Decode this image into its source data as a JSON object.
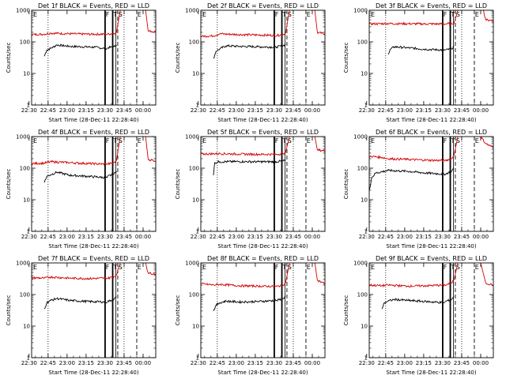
{
  "figure": {
    "start_time_label": "Start Time (28-Dec-11 22:28:40)",
    "ylabel": "Counts/sec",
    "x_tick_labels": [
      "22:30",
      "22:45",
      "23:00",
      "23:15",
      "23:30",
      "23:45",
      "00:00"
    ],
    "y_tick_labels": [
      "1",
      "10",
      "100",
      "1000"
    ],
    "flag_labels": [
      "F",
      "T",
      "S",
      "E"
    ],
    "colors": {
      "events": "#000000",
      "lld": "#d40000",
      "axes": "#000000"
    }
  },
  "chart_data": [
    {
      "type": "line",
      "title": "Det 1f BLACK = Events, RED = LLD",
      "xlabel": "Start Time (28-Dec-11 22:28:40)",
      "ylabel": "Counts/sec",
      "xlim": [
        "22:30",
        "00:08"
      ],
      "ylim": [
        1,
        1000
      ],
      "yscale": "log",
      "series": [
        {
          "name": "Events",
          "color": "#000000",
          "start": "22:40",
          "segments": [
            {
              "x": [
                "22:40",
                "22:42",
                "22:45",
                "22:50",
                "23:00",
                "23:10",
                "23:20",
                "23:30"
              ],
              "y": [
                35,
                55,
                62,
                80,
                72,
                70,
                68,
                60
              ]
            },
            {
              "x": [
                "23:30",
                "23:35",
                "23:37"
              ],
              "y": [
                65,
                70,
                80
              ]
            }
          ]
        },
        {
          "name": "LLD",
          "color": "#d40000",
          "start": "22:30",
          "segments": [
            {
              "x": [
                "22:30",
                "22:40",
                "22:45",
                "23:00",
                "23:15",
                "23:30"
              ],
              "y": [
                170,
                175,
                190,
                180,
                175,
                175
              ]
            },
            {
              "x": [
                "23:30",
                "23:35",
                "23:37",
                "23:40"
              ],
              "y": [
                175,
                185,
                200,
                1000
              ]
            },
            {
              "x": [
                "00:00",
                "00:02",
                "00:08"
              ],
              "y": [
                1000,
                220,
                210
              ]
            }
          ]
        }
      ]
    },
    {
      "type": "line",
      "title": "Det 2f BLACK = Events, RED = LLD",
      "xlabel": "Start Time (28-Dec-11 22:28:40)",
      "ylabel": "Counts/sec",
      "xlim": [
        "22:30",
        "00:08"
      ],
      "ylim": [
        1,
        1000
      ],
      "yscale": "log",
      "series": [
        {
          "name": "Events",
          "color": "#000000",
          "segments": [
            {
              "x": [
                "22:40",
                "22:42",
                "22:45",
                "22:50",
                "23:00",
                "23:15",
                "23:30"
              ],
              "y": [
                30,
                50,
                60,
                75,
                72,
                70,
                68
              ]
            },
            {
              "x": [
                "23:30",
                "23:35",
                "23:37"
              ],
              "y": [
                70,
                75,
                85
              ]
            }
          ]
        },
        {
          "name": "LLD",
          "color": "#d40000",
          "segments": [
            {
              "x": [
                "22:30",
                "22:40",
                "22:45",
                "23:00",
                "23:15",
                "23:30"
              ],
              "y": [
                150,
                155,
                180,
                170,
                165,
                160
              ]
            },
            {
              "x": [
                "23:30",
                "23:35",
                "23:37",
                "23:40"
              ],
              "y": [
                160,
                170,
                190,
                1000
              ]
            },
            {
              "x": [
                "00:00",
                "00:02",
                "00:08"
              ],
              "y": [
                1000,
                200,
                180
              ]
            }
          ]
        }
      ]
    },
    {
      "type": "line",
      "title": "Det 3f BLACK = Events, RED = LLD",
      "xlabel": "Start Time (28-Dec-11 22:28:40)",
      "ylabel": "Counts/sec",
      "xlim": [
        "22:30",
        "00:08"
      ],
      "ylim": [
        1,
        1000
      ],
      "yscale": "log",
      "series": [
        {
          "name": "Events",
          "color": "#000000",
          "segments": [
            {
              "x": [
                "22:45",
                "22:47",
                "22:50",
                "23:00",
                "23:15",
                "23:30"
              ],
              "y": [
                40,
                60,
                70,
                65,
                58,
                55
              ]
            },
            {
              "x": [
                "23:30",
                "23:35",
                "23:37"
              ],
              "y": [
                55,
                60,
                75
              ]
            }
          ]
        },
        {
          "name": "LLD",
          "color": "#d40000",
          "segments": [
            {
              "x": [
                "22:30",
                "22:45",
                "23:00",
                "23:15",
                "23:30"
              ],
              "y": [
                370,
                380,
                375,
                370,
                370
              ]
            },
            {
              "x": [
                "23:30",
                "23:35",
                "23:37",
                "23:40"
              ],
              "y": [
                370,
                380,
                390,
                1000
              ]
            },
            {
              "x": [
                "00:00",
                "00:02",
                "00:08"
              ],
              "y": [
                1000,
                500,
                470
              ]
            }
          ]
        }
      ]
    },
    {
      "type": "line",
      "title": "Det 4f BLACK = Events, RED = LLD",
      "xlabel": "Start Time (28-Dec-11 22:28:40)",
      "ylabel": "Counts/sec",
      "xlim": [
        "22:30",
        "00:08"
      ],
      "ylim": [
        1,
        1000
      ],
      "yscale": "log",
      "series": [
        {
          "name": "Events",
          "color": "#000000",
          "segments": [
            {
              "x": [
                "22:40",
                "22:42",
                "22:45",
                "22:50",
                "23:00",
                "23:15",
                "23:30"
              ],
              "y": [
                35,
                55,
                62,
                75,
                60,
                55,
                50
              ]
            },
            {
              "x": [
                "23:30",
                "23:35",
                "23:37"
              ],
              "y": [
                55,
                65,
                80
              ]
            }
          ]
        },
        {
          "name": "LLD",
          "color": "#d40000",
          "segments": [
            {
              "x": [
                "22:30",
                "22:40",
                "22:45",
                "23:00",
                "23:15",
                "23:30"
              ],
              "y": [
                140,
                145,
                160,
                150,
                140,
                135
              ]
            },
            {
              "x": [
                "23:30",
                "23:35",
                "23:37",
                "23:40"
              ],
              "y": [
                135,
                150,
                175,
                1000
              ]
            },
            {
              "x": [
                "00:00",
                "00:02",
                "00:08"
              ],
              "y": [
                1000,
                190,
                170
              ]
            }
          ]
        }
      ]
    },
    {
      "type": "line",
      "title": "Det 5f BLACK = Events, RED = LLD",
      "xlabel": "Start Time (28-Dec-11 22:28:40)",
      "ylabel": "Counts/sec",
      "xlim": [
        "22:30",
        "00:08"
      ],
      "ylim": [
        1,
        1000
      ],
      "yscale": "log",
      "series": [
        {
          "name": "Events",
          "color": "#000000",
          "segments": [
            {
              "x": [
                "22:40",
                "22:41",
                "22:45",
                "23:00",
                "23:15",
                "23:30"
              ],
              "y": [
                60,
                150,
                160,
                162,
                160,
                160
              ]
            },
            {
              "x": [
                "23:30",
                "23:35",
                "23:37"
              ],
              "y": [
                160,
                170,
                180
              ]
            }
          ]
        },
        {
          "name": "LLD",
          "color": "#d40000",
          "segments": [
            {
              "x": [
                "22:30",
                "22:45",
                "23:00",
                "23:15",
                "23:30"
              ],
              "y": [
                280,
                290,
                280,
                275,
                275
              ]
            },
            {
              "x": [
                "23:30",
                "23:35",
                "23:37",
                "23:40"
              ],
              "y": [
                275,
                290,
                320,
                1000
              ]
            },
            {
              "x": [
                "00:00",
                "00:02",
                "00:08"
              ],
              "y": [
                1000,
                380,
                350
              ]
            }
          ]
        }
      ]
    },
    {
      "type": "line",
      "title": "Det 6f BLACK = Events, RED = LLD",
      "xlabel": "Start Time (28-Dec-11 22:28:40)",
      "ylabel": "Counts/sec",
      "xlim": [
        "22:30",
        "00:08"
      ],
      "ylim": [
        1,
        1000
      ],
      "yscale": "log",
      "series": [
        {
          "name": "Events",
          "color": "#000000",
          "segments": [
            {
              "x": [
                "22:30",
                "22:32",
                "22:35",
                "22:45",
                "23:00",
                "23:15",
                "23:30"
              ],
              "y": [
                20,
                50,
                70,
                85,
                80,
                70,
                65
              ]
            },
            {
              "x": [
                "23:30",
                "23:35",
                "23:37"
              ],
              "y": [
                65,
                80,
                100
              ]
            }
          ]
        },
        {
          "name": "LLD",
          "color": "#d40000",
          "segments": [
            {
              "x": [
                "22:30",
                "22:40",
                "22:45",
                "23:00",
                "23:15",
                "23:30"
              ],
              "y": [
                240,
                220,
                200,
                190,
                180,
                175
              ]
            },
            {
              "x": [
                "23:30",
                "23:35",
                "23:37",
                "23:40"
              ],
              "y": [
                175,
                200,
                260,
                1000
              ]
            },
            {
              "x": [
                "23:58",
                "00:02",
                "00:08"
              ],
              "y": [
                1000,
                600,
                450
              ]
            }
          ]
        }
      ]
    },
    {
      "type": "line",
      "title": "Det 7f BLACK = Events, RED = LLD",
      "xlabel": "Start Time (28-Dec-11 22:28:40)",
      "ylabel": "Counts/sec",
      "xlim": [
        "22:30",
        "00:08"
      ],
      "ylim": [
        1,
        1000
      ],
      "yscale": "log",
      "series": [
        {
          "name": "Events",
          "color": "#000000",
          "segments": [
            {
              "x": [
                "22:40",
                "22:42",
                "22:45",
                "22:50",
                "23:00",
                "23:15",
                "23:30"
              ],
              "y": [
                35,
                55,
                65,
                75,
                65,
                60,
                58
              ]
            },
            {
              "x": [
                "23:30",
                "23:35",
                "23:37"
              ],
              "y": [
                60,
                70,
                85
              ]
            }
          ]
        },
        {
          "name": "LLD",
          "color": "#d40000",
          "segments": [
            {
              "x": [
                "22:30",
                "22:40",
                "22:45",
                "23:00",
                "23:15",
                "23:30"
              ],
              "y": [
                340,
                330,
                360,
                330,
                320,
                330
              ]
            },
            {
              "x": [
                "23:30",
                "23:35",
                "23:37",
                "23:40"
              ],
              "y": [
                330,
                360,
                420,
                1000
              ]
            },
            {
              "x": [
                "00:00",
                "00:02",
                "00:08"
              ],
              "y": [
                1000,
                480,
                450
              ]
            }
          ]
        }
      ]
    },
    {
      "type": "line",
      "title": "Det 8f BLACK = Events, RED = LLD",
      "xlabel": "Start Time (28-Dec-11 22:28:40)",
      "ylabel": "Counts/sec",
      "xlim": [
        "22:30",
        "00:08"
      ],
      "ylim": [
        1,
        1000
      ],
      "yscale": "log",
      "series": [
        {
          "name": "Events",
          "color": "#000000",
          "segments": [
            {
              "x": [
                "22:40",
                "22:42",
                "22:45",
                "22:50",
                "23:00",
                "23:15",
                "23:30"
              ],
              "y": [
                30,
                45,
                55,
                62,
                58,
                60,
                65
              ]
            },
            {
              "x": [
                "23:30",
                "23:35",
                "23:37"
              ],
              "y": [
                65,
                75,
                90
              ]
            }
          ]
        },
        {
          "name": "LLD",
          "color": "#d40000",
          "segments": [
            {
              "x": [
                "22:30",
                "22:40",
                "22:45",
                "23:00",
                "23:15",
                "23:30"
              ],
              "y": [
                220,
                200,
                210,
                190,
                185,
                180
              ]
            },
            {
              "x": [
                "23:30",
                "23:35",
                "23:37",
                "23:40"
              ],
              "y": [
                180,
                200,
                240,
                1000
              ]
            },
            {
              "x": [
                "00:00",
                "00:02",
                "00:08"
              ],
              "y": [
                1000,
                280,
                220
              ]
            }
          ]
        }
      ]
    },
    {
      "type": "line",
      "title": "Det 9f BLACK = Events, RED = LLD",
      "xlabel": "Start Time (28-Dec-11 22:28:40)",
      "ylabel": "Counts/sec",
      "xlim": [
        "22:30",
        "00:08"
      ],
      "ylim": [
        1,
        1000
      ],
      "yscale": "log",
      "series": [
        {
          "name": "Events",
          "color": "#000000",
          "segments": [
            {
              "x": [
                "22:40",
                "22:42",
                "22:45",
                "22:50",
                "23:00",
                "23:15",
                "23:30"
              ],
              "y": [
                35,
                55,
                62,
                70,
                65,
                60,
                55
              ]
            },
            {
              "x": [
                "23:30",
                "23:35",
                "23:37"
              ],
              "y": [
                60,
                70,
                85
              ]
            }
          ]
        },
        {
          "name": "LLD",
          "color": "#d40000",
          "segments": [
            {
              "x": [
                "22:30",
                "22:40",
                "22:45",
                "23:00",
                "23:15",
                "23:30"
              ],
              "y": [
                200,
                190,
                200,
                185,
                190,
                200
              ]
            },
            {
              "x": [
                "23:30",
                "23:35",
                "23:37",
                "23:40"
              ],
              "y": [
                200,
                230,
                300,
                1000
              ]
            },
            {
              "x": [
                "23:58",
                "00:02",
                "00:08"
              ],
              "y": [
                1000,
                230,
                200
              ]
            }
          ]
        }
      ]
    }
  ]
}
